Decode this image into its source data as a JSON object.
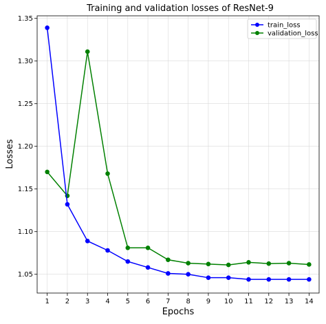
{
  "chart_data": {
    "type": "line",
    "title": "Training and validation losses of ResNet-9",
    "xlabel": "Epochs",
    "ylabel": "Losses",
    "x": [
      1,
      2,
      3,
      4,
      5,
      6,
      7,
      8,
      9,
      10,
      11,
      12,
      13,
      14
    ],
    "xlim": [
      0.5,
      14.5
    ],
    "ylim": [
      1.028,
      1.353
    ],
    "x_ticks": [
      1,
      2,
      3,
      4,
      5,
      6,
      7,
      8,
      9,
      10,
      11,
      12,
      13,
      14
    ],
    "y_ticks": [
      1.05,
      1.1,
      1.15,
      1.2,
      1.25,
      1.3,
      1.35
    ],
    "y_tick_labels": [
      "1.05",
      "1.10",
      "1.15",
      "1.20",
      "1.25",
      "1.30",
      "1.35"
    ],
    "grid": true,
    "legend_position": "top-right",
    "series": [
      {
        "name": "train_loss",
        "color": "#0000ff",
        "marker": "circle",
        "values": [
          1.339,
          1.132,
          1.089,
          1.078,
          1.065,
          1.058,
          1.051,
          1.05,
          1.046,
          1.046,
          1.044,
          1.044,
          1.044,
          1.044
        ]
      },
      {
        "name": "validation_loss",
        "color": "#008000",
        "marker": "circle",
        "values": [
          1.17,
          1.142,
          1.311,
          1.168,
          1.081,
          1.081,
          1.067,
          1.063,
          1.062,
          1.061,
          1.064,
          1.0625,
          1.063,
          1.0615
        ]
      }
    ]
  }
}
